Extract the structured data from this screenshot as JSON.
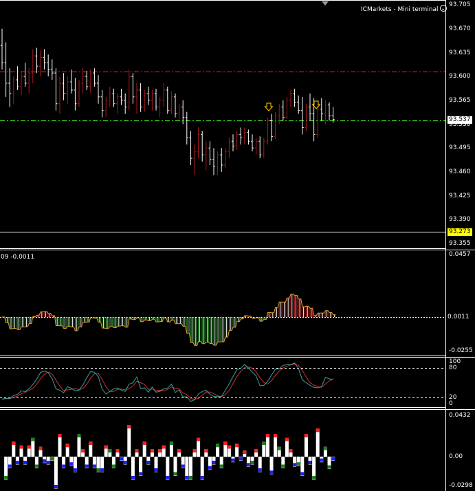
{
  "terminal": {
    "title": "ICMarkets - Mini terminal",
    "smiley_icon": "smiley-face-icon"
  },
  "colors": {
    "background": "#000000",
    "axis": "#ffffff",
    "bull_bar": "#b01818",
    "bear_bar": "#ffffff",
    "resistance_line": "#e01010",
    "support_line": "#38c818",
    "price_tag_bg": "#ffffff",
    "bid_tag_bg": "#ffff00",
    "arrow_marker": "#ffd200",
    "macd_up": "#b01818",
    "macd_down": "#208a20",
    "macd_signal": "#e0a020",
    "stoch_main": "#3aa0a0",
    "stoch_signal": "#d03030",
    "hist_white": "#ffffff",
    "hist_red": "#ff2020",
    "hist_blue": "#2020ff",
    "hist_green": "#208020"
  },
  "price_pane": {
    "labels": [
      "93.705",
      "93.670",
      "93.635",
      "93.600",
      "93.565",
      "93.530",
      "93.495",
      "93.460",
      "93.425",
      "93.390",
      "93.355"
    ],
    "current_price": "93.537",
    "bid_price": "93.273",
    "resistance_level": 93.605,
    "support_level": 93.535,
    "arrow_markers": [
      "down-arrow-marker-1",
      "down-arrow-marker-2"
    ]
  },
  "macd_pane": {
    "header": "09 -0.0011",
    "top_label": "0.0457",
    "zero_label": "0.0011",
    "bottom_label": "-0.0255"
  },
  "stoch_pane": {
    "label_100": "100",
    "label_80": "80",
    "label_20": "20",
    "label_0": "0"
  },
  "hist_pane": {
    "top_label": "0.0432",
    "zero_label": "0.00",
    "bottom_label": "-0.0298"
  },
  "chart_data": {
    "type": "candlestick",
    "title": "",
    "note": "OHLC bars read approximately from the price pane (price units)",
    "bars": [
      [
        93.645,
        93.67,
        93.61,
        93.62
      ],
      [
        93.62,
        93.65,
        93.57,
        93.59
      ],
      [
        93.59,
        93.612,
        93.555,
        93.575
      ],
      [
        93.575,
        93.6,
        93.56,
        93.595
      ],
      [
        93.595,
        93.615,
        93.58,
        93.585
      ],
      [
        93.585,
        93.608,
        93.572,
        93.6
      ],
      [
        93.6,
        93.62,
        93.585,
        93.59
      ],
      [
        93.59,
        93.612,
        93.575,
        93.605
      ],
      [
        93.605,
        93.64,
        93.59,
        93.63
      ],
      [
        93.63,
        93.642,
        93.605,
        93.615
      ],
      [
        93.615,
        93.638,
        93.6,
        93.628
      ],
      [
        93.628,
        93.64,
        93.61,
        93.62
      ],
      [
        93.62,
        93.632,
        93.6,
        93.61
      ],
      [
        93.61,
        93.625,
        93.595,
        93.605
      ],
      [
        93.605,
        93.612,
        93.55,
        93.56
      ],
      [
        93.56,
        93.6,
        93.545,
        93.59
      ],
      [
        93.59,
        93.605,
        93.565,
        93.575
      ],
      [
        93.575,
        93.6,
        93.56,
        93.592
      ],
      [
        93.592,
        93.61,
        93.575,
        93.58
      ],
      [
        93.58,
        93.598,
        93.55,
        93.56
      ],
      [
        93.56,
        93.595,
        93.555,
        93.59
      ],
      [
        93.59,
        93.612,
        93.575,
        93.6
      ],
      [
        93.6,
        93.608,
        93.58,
        93.585
      ],
      [
        93.585,
        93.61,
        93.575,
        93.605
      ],
      [
        93.605,
        93.612,
        93.585,
        93.59
      ],
      [
        93.59,
        93.602,
        93.56,
        93.57
      ],
      [
        93.57,
        93.58,
        93.54,
        93.55
      ],
      [
        93.55,
        93.57,
        93.54,
        93.565
      ],
      [
        93.565,
        93.585,
        93.555,
        93.575
      ],
      [
        93.575,
        93.582,
        93.555,
        93.56
      ],
      [
        93.56,
        93.575,
        93.545,
        93.57
      ],
      [
        93.57,
        93.582,
        93.558,
        93.565
      ],
      [
        93.565,
        93.575,
        93.545,
        93.555
      ],
      [
        93.555,
        93.61,
        93.55,
        93.6
      ],
      [
        93.6,
        93.605,
        93.56,
        93.57
      ],
      [
        93.57,
        93.59,
        93.545,
        93.58
      ],
      [
        93.58,
        93.59,
        93.548,
        93.555
      ],
      [
        93.555,
        93.58,
        93.548,
        93.575
      ],
      [
        93.575,
        93.585,
        93.558,
        93.565
      ],
      [
        93.565,
        93.58,
        93.55,
        93.575
      ],
      [
        93.575,
        93.582,
        93.55,
        93.555
      ],
      [
        93.555,
        93.57,
        93.54,
        93.565
      ],
      [
        93.565,
        93.59,
        93.555,
        93.58
      ],
      [
        93.58,
        93.585,
        93.545,
        93.55
      ],
      [
        93.55,
        93.578,
        93.545,
        93.57
      ],
      [
        93.57,
        93.575,
        93.54,
        93.545
      ],
      [
        93.545,
        93.56,
        93.535,
        93.555
      ],
      [
        93.555,
        93.565,
        93.53,
        93.54
      ],
      [
        93.54,
        93.548,
        93.5,
        93.51
      ],
      [
        93.51,
        93.52,
        93.47,
        93.48
      ],
      [
        93.48,
        93.5,
        93.455,
        93.49
      ],
      [
        93.49,
        93.525,
        93.48,
        93.515
      ],
      [
        93.515,
        93.52,
        93.475,
        93.485
      ],
      [
        93.485,
        93.505,
        93.462,
        93.495
      ],
      [
        93.495,
        93.505,
        93.47,
        93.478
      ],
      [
        93.478,
        93.495,
        93.455,
        93.468
      ],
      [
        93.468,
        93.49,
        93.455,
        93.485
      ],
      [
        93.485,
        93.495,
        93.46,
        93.47
      ],
      [
        93.47,
        93.495,
        93.465,
        93.49
      ],
      [
        93.49,
        93.51,
        93.48,
        93.505
      ],
      [
        93.505,
        93.515,
        93.49,
        93.498
      ],
      [
        93.498,
        93.52,
        93.492,
        93.515
      ],
      [
        93.515,
        93.525,
        93.5,
        93.51
      ],
      [
        93.51,
        93.525,
        93.5,
        93.518
      ],
      [
        93.518,
        93.522,
        93.5,
        93.505
      ],
      [
        93.505,
        93.515,
        93.49,
        93.495
      ],
      [
        93.495,
        93.51,
        93.485,
        93.505
      ],
      [
        93.505,
        93.512,
        93.48,
        93.485
      ],
      [
        93.485,
        93.51,
        93.48,
        93.505
      ],
      [
        93.505,
        93.54,
        93.5,
        93.535
      ],
      [
        93.535,
        93.545,
        93.505,
        93.512
      ],
      [
        93.512,
        93.548,
        93.508,
        93.542
      ],
      [
        93.542,
        93.56,
        93.53,
        93.555
      ],
      [
        93.555,
        93.565,
        93.535,
        93.54
      ],
      [
        93.54,
        93.57,
        93.538,
        93.565
      ],
      [
        93.565,
        93.58,
        93.555,
        93.575
      ],
      [
        93.575,
        93.582,
        93.555,
        93.562
      ],
      [
        93.562,
        93.572,
        93.545,
        93.55
      ],
      [
        93.55,
        93.57,
        93.515,
        93.525
      ],
      [
        93.525,
        93.56,
        93.52,
        93.555
      ],
      [
        93.555,
        93.575,
        93.535,
        93.545
      ],
      [
        93.545,
        93.568,
        93.505,
        93.515
      ],
      [
        93.515,
        93.56,
        93.51,
        93.552
      ],
      [
        93.552,
        93.568,
        93.535,
        93.545
      ],
      [
        93.545,
        93.565,
        93.53,
        93.558
      ],
      [
        93.558,
        93.562,
        93.535,
        93.542
      ],
      [
        93.542,
        93.555,
        93.532,
        93.537
      ]
    ]
  }
}
